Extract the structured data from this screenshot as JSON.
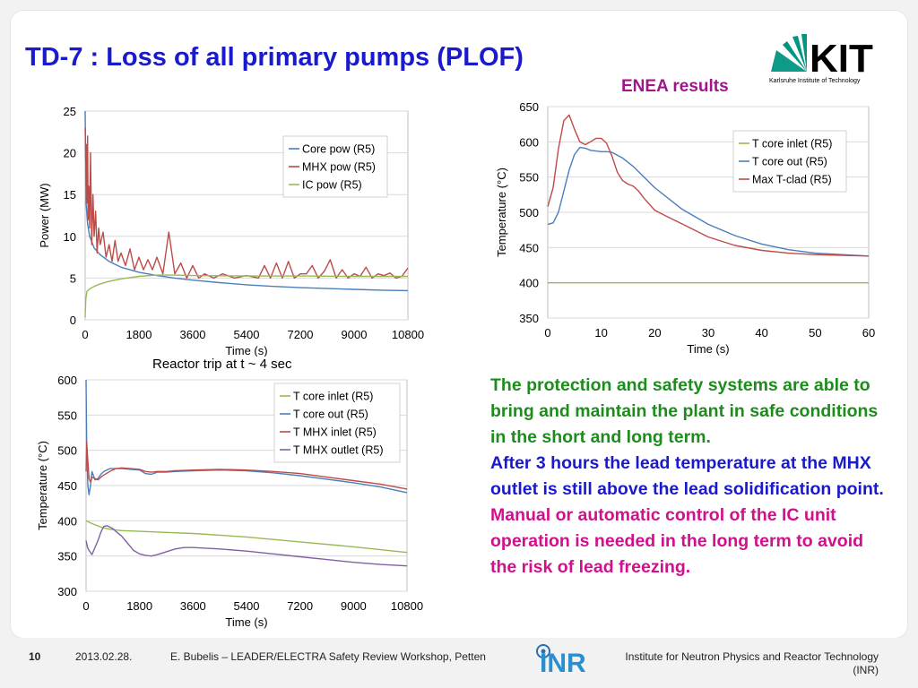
{
  "slide": {
    "title": "TD-7 : Loss of all primary pumps (PLOF)",
    "enea_label": "ENEA results",
    "logo_text": "KIT",
    "logo_subtitle": "Karlsruhe Institute of Technology",
    "note": "Reactor trip at t ~ 4 sec",
    "paragraphs": [
      "The protection and safety systems are able to bring and maintain the plant in safe conditions in the short and long term.",
      "After 3 hours the lead temperature at the MHX outlet is still above the lead solidification point.",
      "Manual or automatic control of the IC unit operation is needed in the long term to avoid the risk of lead freezing."
    ],
    "colors": {
      "title": "#1a1acd",
      "enea": "#a0148c",
      "green": "#1d8c1d",
      "blue": "#1a1acd",
      "magenta": "#d0108c"
    }
  },
  "footer": {
    "page": "10",
    "date": "2013.02.28.",
    "event": "E. Bubelis – LEADER/ELECTRA Safety Review Workshop, Petten",
    "inr_logo": "INR",
    "institute_line1": "Institute for Neutron Physics and Reactor Technology",
    "institute_line2": "(INR)"
  },
  "chart_data": [
    {
      "type": "line",
      "xlabel": "Time (s)",
      "ylabel": "Power (MW)",
      "xlim": [
        0,
        10800
      ],
      "ylim": [
        0,
        25
      ],
      "xticks": [
        "0",
        "1800",
        "3600",
        "5400",
        "7200",
        "9000",
        "10800"
      ],
      "yticks": [
        "0",
        "5",
        "10",
        "15",
        "20",
        "25"
      ],
      "grid": true,
      "legend": "top-right",
      "series": [
        {
          "name": "Core pow (R5)",
          "color": "#4a7ebb",
          "x": [
            0,
            30,
            80,
            150,
            300,
            500,
            800,
            1200,
            1800,
            2400,
            3000,
            3600,
            4500,
            5400,
            6300,
            7200,
            8100,
            9000,
            9900,
            10800
          ],
          "y": [
            25,
            14,
            11.5,
            10,
            8.6,
            7.8,
            7.0,
            6.3,
            5.7,
            5.3,
            5.0,
            4.75,
            4.45,
            4.2,
            4.0,
            3.85,
            3.75,
            3.65,
            3.55,
            3.5
          ]
        },
        {
          "name": "MHX pow (R5)",
          "color": "#be4b48",
          "x": [
            0,
            20,
            40,
            60,
            80,
            100,
            120,
            150,
            180,
            220,
            260,
            300,
            350,
            400,
            450,
            500,
            600,
            700,
            800,
            900,
            1000,
            1100,
            1200,
            1350,
            1500,
            1650,
            1800,
            1950,
            2100,
            2250,
            2400,
            2600,
            2800,
            3000,
            3200,
            3400,
            3600,
            3800,
            4000,
            4300,
            4600,
            5000,
            5400,
            5800,
            6000,
            6200,
            6400,
            6600,
            6800,
            7000,
            7200,
            7400,
            7600,
            7800,
            8000,
            8200,
            8400,
            8600,
            8800,
            9000,
            9200,
            9400,
            9600,
            9800,
            10000,
            10200,
            10400,
            10600,
            10800
          ],
          "y": [
            23,
            19,
            21,
            14,
            22,
            12,
            16,
            11,
            20,
            9,
            15,
            10,
            13,
            8,
            11,
            9,
            10.5,
            7.5,
            9,
            7,
            9.5,
            7,
            8,
            6.5,
            8.5,
            6,
            7.5,
            6,
            7.2,
            6,
            7.5,
            5.5,
            10.5,
            5.5,
            6.8,
            5,
            6.5,
            5,
            5.5,
            5,
            5.5,
            5,
            5.3,
            5,
            6.5,
            5,
            6.8,
            5,
            7,
            5,
            5.5,
            5.5,
            6.5,
            5,
            5.8,
            7.2,
            5,
            6,
            5,
            5.5,
            5.2,
            6.3,
            5,
            5.5,
            5.3,
            5.6,
            5,
            5.2,
            6.2
          ]
        },
        {
          "name": "IC pow (R5)",
          "color": "#98b954",
          "x": [
            0,
            20,
            60,
            150,
            300,
            500,
            800,
            1200,
            1800,
            2400,
            3000,
            3600,
            5400,
            7200,
            9000,
            10800
          ],
          "y": [
            0.3,
            2.5,
            3.4,
            3.7,
            4.0,
            4.3,
            4.6,
            4.9,
            5.2,
            5.35,
            5.35,
            5.3,
            5.25,
            5.25,
            5.2,
            5.2
          ]
        }
      ]
    },
    {
      "type": "line",
      "xlabel": "Time (s)",
      "ylabel": "Temperature (°C)",
      "xlim": [
        0,
        60
      ],
      "ylim": [
        350,
        650
      ],
      "xticks": [
        "0",
        "10",
        "20",
        "30",
        "40",
        "50",
        "60"
      ],
      "yticks": [
        "350",
        "400",
        "450",
        "500",
        "550",
        "600",
        "650"
      ],
      "grid": true,
      "legend": "top-right",
      "series": [
        {
          "name": "T core inlet (R5)",
          "color": "#98b954",
          "x": [
            0,
            10,
            20,
            30,
            40,
            50,
            60
          ],
          "y": [
            400,
            400,
            400,
            400,
            400,
            400,
            400
          ]
        },
        {
          "name": "T core out (R5)",
          "color": "#4a7ebb",
          "x": [
            0,
            1,
            2,
            3,
            4,
            5,
            6,
            7,
            8,
            9,
            10,
            11,
            12,
            14,
            16,
            18,
            20,
            25,
            30,
            35,
            40,
            45,
            50,
            55,
            60
          ],
          "y": [
            483,
            485,
            500,
            530,
            560,
            582,
            592,
            591,
            588,
            587,
            586,
            586,
            585,
            577,
            565,
            550,
            535,
            505,
            483,
            467,
            455,
            447,
            442,
            440,
            438
          ]
        },
        {
          "name": "Max T-clad (R5)",
          "color": "#be4b48",
          "x": [
            0,
            1,
            2,
            3,
            4,
            5,
            6,
            7,
            8,
            9,
            10,
            11,
            12,
            13,
            14,
            15,
            16,
            17,
            18,
            20,
            22,
            25,
            30,
            35,
            40,
            45,
            50,
            55,
            60
          ],
          "y": [
            508,
            535,
            590,
            630,
            638,
            618,
            600,
            596,
            600,
            605,
            605,
            598,
            580,
            557,
            545,
            540,
            537,
            530,
            520,
            503,
            495,
            484,
            465,
            453,
            446,
            442,
            440,
            439,
            438
          ]
        }
      ]
    },
    {
      "type": "line",
      "xlabel": "Time (s)",
      "ylabel": "Temperature (°C)",
      "xlim": [
        0,
        10800
      ],
      "ylim": [
        300,
        600
      ],
      "xticks": [
        "0",
        "1800",
        "3600",
        "5400",
        "7200",
        "9000",
        "10800"
      ],
      "yticks": [
        "300",
        "350",
        "400",
        "450",
        "500",
        "550",
        "600"
      ],
      "grid": true,
      "legend": "top-right",
      "series": [
        {
          "name": "T core inlet (R5)",
          "color": "#98b954",
          "x": [
            0,
            200,
            500,
            800,
            1200,
            1800,
            2400,
            3600,
            5400,
            7200,
            9000,
            10800
          ],
          "y": [
            400,
            396,
            391,
            388,
            386,
            385,
            384,
            382,
            377,
            370,
            363,
            355
          ]
        },
        {
          "name": "T core out (R5)",
          "color": "#4a7ebb",
          "x": [
            0,
            20,
            60,
            100,
            150,
            200,
            300,
            400,
            500,
            600,
            800,
            1000,
            1200,
            1500,
            1800,
            2000,
            2200,
            2400,
            2700,
            3000,
            3600,
            4500,
            5400,
            6300,
            7200,
            8100,
            9000,
            9900,
            10800
          ],
          "y": [
            600,
            505,
            450,
            437,
            450,
            470,
            458,
            460,
            466,
            470,
            474,
            474,
            474,
            473,
            472,
            467,
            466,
            469,
            469,
            470,
            471,
            472,
            471,
            468,
            464,
            459,
            454,
            448,
            440
          ]
        },
        {
          "name": "T MHX inlet (R5)",
          "color": "#be4b48",
          "x": [
            0,
            20,
            60,
            100,
            150,
            200,
            300,
            400,
            500,
            600,
            800,
            1000,
            1200,
            1500,
            1800,
            2000,
            2200,
            2400,
            2700,
            3000,
            3600,
            4500,
            5400,
            6300,
            7200,
            8100,
            9000,
            9900,
            10800
          ],
          "y": [
            470,
            512,
            485,
            460,
            455,
            462,
            460,
            458,
            462,
            465,
            470,
            474,
            475,
            474,
            473,
            470,
            469,
            470,
            470,
            471,
            472,
            473,
            472,
            470,
            467,
            462,
            457,
            452,
            445
          ]
        },
        {
          "name": "T MHX outlet (R5)",
          "color": "#7f62a2",
          "x": [
            0,
            50,
            100,
            200,
            300,
            400,
            500,
            600,
            700,
            800,
            900,
            1000,
            1200,
            1400,
            1600,
            1800,
            2000,
            2200,
            2400,
            2700,
            3000,
            3300,
            3600,
            4500,
            5400,
            6300,
            7200,
            8100,
            9000,
            9900,
            10800
          ],
          "y": [
            372,
            362,
            358,
            352,
            362,
            372,
            384,
            392,
            393,
            391,
            389,
            385,
            378,
            368,
            358,
            353,
            351,
            350,
            352,
            356,
            360,
            362,
            362,
            360,
            357,
            353,
            349,
            345,
            341,
            338,
            336
          ]
        }
      ]
    }
  ]
}
